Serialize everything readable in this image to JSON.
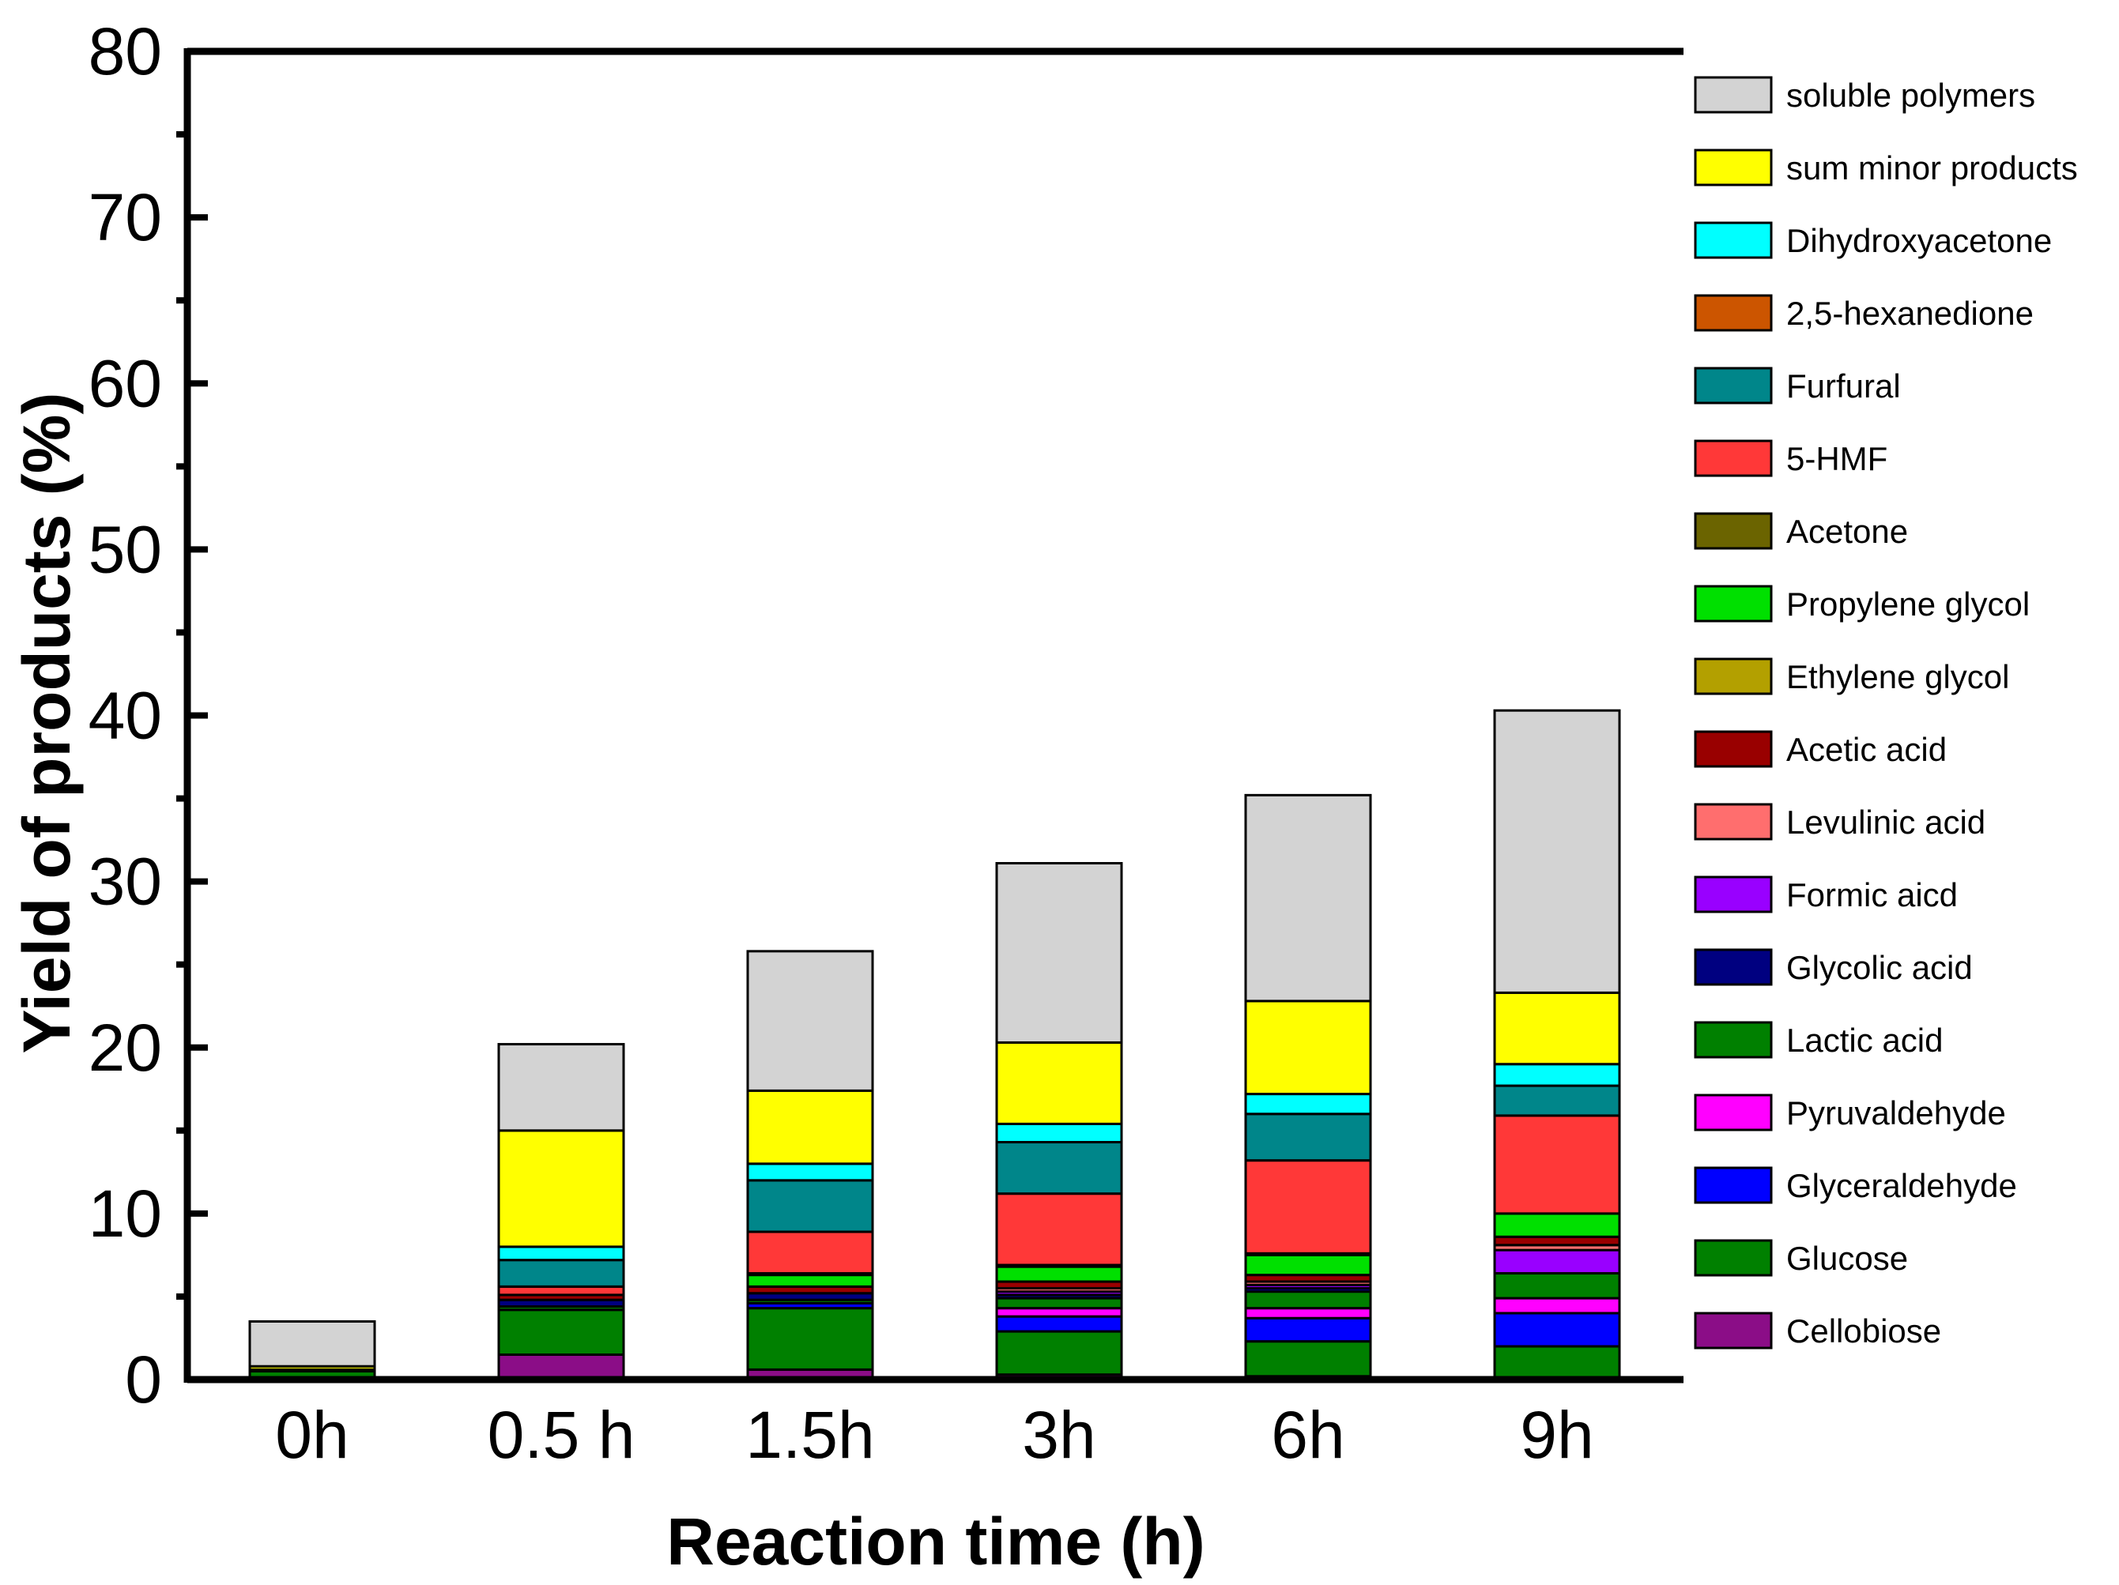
{
  "chart_data": {
    "type": "bar",
    "stacked": true,
    "title": "",
    "xlabel": "Reaction time (h)",
    "ylabel": "Yield of products (%)",
    "ylim": [
      0,
      80
    ],
    "yticks": [
      "0",
      "10",
      "20",
      "30",
      "40",
      "50",
      "60",
      "70",
      "80"
    ],
    "grid": false,
    "legend_position": "right",
    "categories": [
      "0h",
      "0.5 h",
      "1.5h",
      "3h",
      "6h",
      "9h"
    ],
    "series": [
      {
        "name": "Cellobiose",
        "color": "#8b0d87",
        "values": [
          0.0,
          1.5,
          0.6,
          0.3,
          0.2,
          0.0
        ]
      },
      {
        "name": "Glucose",
        "color": "#008000",
        "values": [
          0.5,
          2.7,
          3.7,
          2.6,
          2.1,
          2.0
        ]
      },
      {
        "name": "Glyceraldehyde",
        "color": "#0000ff",
        "values": [
          0.0,
          0.0,
          0.3,
          0.9,
          1.4,
          2.0
        ]
      },
      {
        "name": "Pyruvaldehyde",
        "color": "#ff00ff",
        "values": [
          0.0,
          0.0,
          0.0,
          0.5,
          0.6,
          0.9
        ]
      },
      {
        "name": "Lactic acid",
        "color": "#008000",
        "values": [
          0.0,
          0.2,
          0.2,
          0.6,
          1.0,
          1.5
        ]
      },
      {
        "name": "Glycolic acid",
        "color": "#000080",
        "values": [
          0.0,
          0.4,
          0.4,
          0.2,
          0.2,
          0.0
        ]
      },
      {
        "name": "Formic aicd",
        "color": "#9900ff",
        "values": [
          0.0,
          0.0,
          0.0,
          0.2,
          0.2,
          1.4
        ]
      },
      {
        "name": "Levulinic acid",
        "color": "#ff6e6e",
        "values": [
          0.0,
          0.0,
          0.0,
          0.2,
          0.2,
          0.3
        ]
      },
      {
        "name": "Acetic acid",
        "color": "#990000",
        "values": [
          0.0,
          0.3,
          0.4,
          0.4,
          0.4,
          0.5
        ]
      },
      {
        "name": "Ethylene glycol",
        "color": "#b3a000",
        "values": [
          0.1,
          0.0,
          0.0,
          0.0,
          0.0,
          0.0
        ]
      },
      {
        "name": "Propylene glycol",
        "color": "#00e000",
        "values": [
          0.0,
          0.0,
          0.7,
          0.9,
          1.2,
          1.4
        ]
      },
      {
        "name": "Acetone",
        "color": "#6b6400",
        "values": [
          0.0,
          0.0,
          0.1,
          0.1,
          0.1,
          0.0
        ]
      },
      {
        "name": "5-HMF",
        "color": "#ff3838",
        "values": [
          0.0,
          0.5,
          2.5,
          4.3,
          5.6,
          5.9
        ]
      },
      {
        "name": "Furfural",
        "color": "#00868a",
        "values": [
          0.0,
          1.6,
          3.1,
          3.1,
          2.8,
          1.8
        ]
      },
      {
        "name": "2,5-hexanedione",
        "color": "#cc5500",
        "values": [
          0.0,
          0.0,
          0.0,
          0.0,
          0.0,
          0.0
        ]
      },
      {
        "name": "Dihydroxyacetone",
        "color": "#00ffff",
        "values": [
          0.0,
          0.8,
          1.0,
          1.1,
          1.2,
          1.3
        ]
      },
      {
        "name": "sum minor products",
        "color": "#ffff00",
        "values": [
          0.2,
          7.0,
          4.4,
          4.9,
          5.6,
          4.3
        ]
      },
      {
        "name": "soluble polymers",
        "color": "#d3d3d3",
        "values": [
          2.7,
          5.2,
          8.4,
          10.8,
          12.4,
          17.0
        ]
      }
    ]
  }
}
